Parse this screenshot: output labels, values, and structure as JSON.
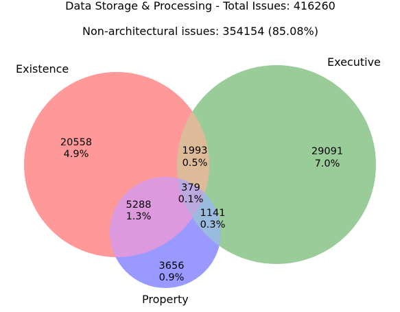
{
  "title": "Data Storage & Processing - Total Issues: 416260",
  "subtitle": "Non-architectural issues: 354154 (85.08%)",
  "sets": {
    "existence": {
      "label": "Existence",
      "color": "#ff9999"
    },
    "executive": {
      "label": "Executive",
      "color": "#99cc99"
    },
    "property": {
      "label": "Property",
      "color": "#9999ff"
    }
  },
  "regions": {
    "existence_only": {
      "count": "20558",
      "percent": "4.9%"
    },
    "existence_executive": {
      "count": "1993",
      "percent": "0.5%"
    },
    "executive_only": {
      "count": "29091",
      "percent": "7.0%"
    },
    "all_three": {
      "count": "379",
      "percent": "0.1%"
    },
    "existence_property": {
      "count": "5288",
      "percent": "1.3%"
    },
    "executive_property": {
      "count": "1141",
      "percent": "0.3%"
    },
    "property_only": {
      "count": "3656",
      "percent": "0.9%"
    }
  }
}
